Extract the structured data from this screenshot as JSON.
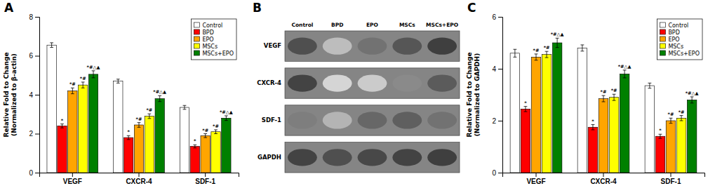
{
  "chart_data": [
    {
      "type": "bar",
      "title": "A",
      "ylabel": "Relative Fold to Change\n(Normalized to β-actin)",
      "categories": [
        "VEGF",
        "CXCR-4",
        "SDF-1"
      ],
      "series": [
        {
          "name": "Control",
          "color": "#FFFFFF",
          "values": [
            6.55,
            4.7,
            3.35
          ],
          "errors": [
            0.12,
            0.1,
            0.1
          ]
        },
        {
          "name": "BPD",
          "color": "#FF0000",
          "values": [
            2.4,
            1.8,
            1.35
          ],
          "errors": [
            0.1,
            0.1,
            0.08
          ],
          "annotations": [
            "*",
            "*",
            "*"
          ]
        },
        {
          "name": "EPO",
          "color": "#FFA500",
          "values": [
            4.2,
            2.45,
            1.9
          ],
          "errors": [
            0.15,
            0.12,
            0.1
          ],
          "annotations": [
            "*#",
            "*#",
            "*#"
          ]
        },
        {
          "name": "MSCs",
          "color": "#FFFF00",
          "values": [
            4.5,
            2.9,
            2.1
          ],
          "errors": [
            0.15,
            0.12,
            0.1
          ],
          "annotations": [
            "*#",
            "*#",
            "*#"
          ]
        },
        {
          "name": "MSCs+EPO",
          "color": "#008000",
          "values": [
            5.05,
            3.8,
            2.8
          ],
          "errors": [
            0.18,
            0.15,
            0.12
          ],
          "annotations": [
            "*#△▲",
            "*#△▲",
            "*#△▲"
          ]
        }
      ],
      "ylim": [
        0,
        8
      ],
      "yticks": [
        0,
        2,
        4,
        6,
        8
      ],
      "grid": false,
      "legend": "upper right"
    },
    {
      "type": "heatmap",
      "title": "B",
      "categories": [
        "Control",
        "BPD",
        "EPO",
        "MSCs",
        "MSCs+EPO"
      ],
      "rows": [
        "VEGF",
        "CXCR-4",
        "SDF-1",
        "GAPDH"
      ],
      "values": [
        [
          0.75,
          0.28,
          0.6,
          0.72,
          0.82
        ],
        [
          0.8,
          0.18,
          0.22,
          0.5,
          0.7
        ],
        [
          0.55,
          0.32,
          0.65,
          0.68,
          0.6
        ],
        [
          0.8,
          0.75,
          0.78,
          0.8,
          0.82
        ]
      ]
    },
    {
      "type": "bar",
      "title": "C",
      "ylabel": "Relative Fold to Change\n(Normalized to GAPDH)",
      "categories": [
        "VEGF",
        "CXCR-4",
        "SDF-1"
      ],
      "series": [
        {
          "name": "Control",
          "color": "#FFFFFF",
          "values": [
            4.6,
            4.8,
            3.35
          ],
          "errors": [
            0.15,
            0.12,
            0.1
          ]
        },
        {
          "name": "BPD",
          "color": "#FF0000",
          "values": [
            2.45,
            1.75,
            1.4
          ],
          "errors": [
            0.1,
            0.1,
            0.08
          ],
          "annotations": [
            "*",
            "*",
            "*"
          ]
        },
        {
          "name": "EPO",
          "color": "#FFA500",
          "values": [
            4.45,
            2.85,
            2.0
          ],
          "errors": [
            0.12,
            0.12,
            0.1
          ],
          "annotations": [
            "*#",
            "*#",
            "*#"
          ]
        },
        {
          "name": "MSCs",
          "color": "#FFFF00",
          "values": [
            4.55,
            2.9,
            2.1
          ],
          "errors": [
            0.12,
            0.12,
            0.1
          ],
          "annotations": [
            "*#",
            "*#",
            "*#"
          ]
        },
        {
          "name": "MSCs+EPO",
          "color": "#008000",
          "values": [
            5.0,
            3.8,
            2.8
          ],
          "errors": [
            0.18,
            0.15,
            0.12
          ],
          "annotations": [
            "*#△▲",
            "*#△▲",
            "*#△▲"
          ]
        }
      ],
      "ylim": [
        0,
        6
      ],
      "yticks": [
        0,
        2,
        4,
        6
      ],
      "grid": false,
      "legend": "upper right"
    }
  ]
}
